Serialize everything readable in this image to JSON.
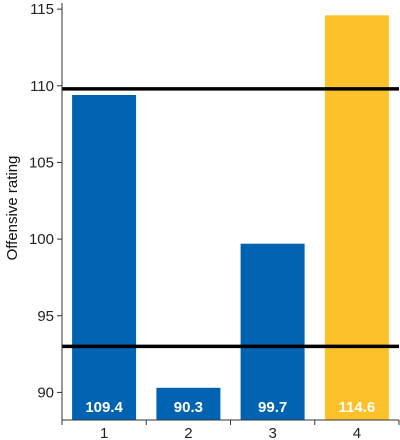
{
  "chart_data": {
    "type": "bar",
    "categories": [
      "1",
      "2",
      "3",
      "4"
    ],
    "values": [
      109.4,
      90.3,
      99.7,
      114.6
    ],
    "value_labels": [
      "109.4",
      "90.3",
      "99.7",
      "114.6"
    ],
    "bar_colors": [
      "#0063b1",
      "#0063b1",
      "#0063b1",
      "#fdc12a"
    ],
    "ylabel": "Offensive rating",
    "xlabel": "",
    "ylim": [
      88.2,
      115.4
    ],
    "yticks": [
      90,
      95,
      100,
      105,
      110,
      115
    ],
    "ytick_labels": [
      "90",
      "95",
      "100",
      "105",
      "110",
      "115"
    ],
    "reference_lines": [
      109.8,
      93.0
    ],
    "reference_line_color": "#000000",
    "grid": false,
    "legend": "none"
  }
}
